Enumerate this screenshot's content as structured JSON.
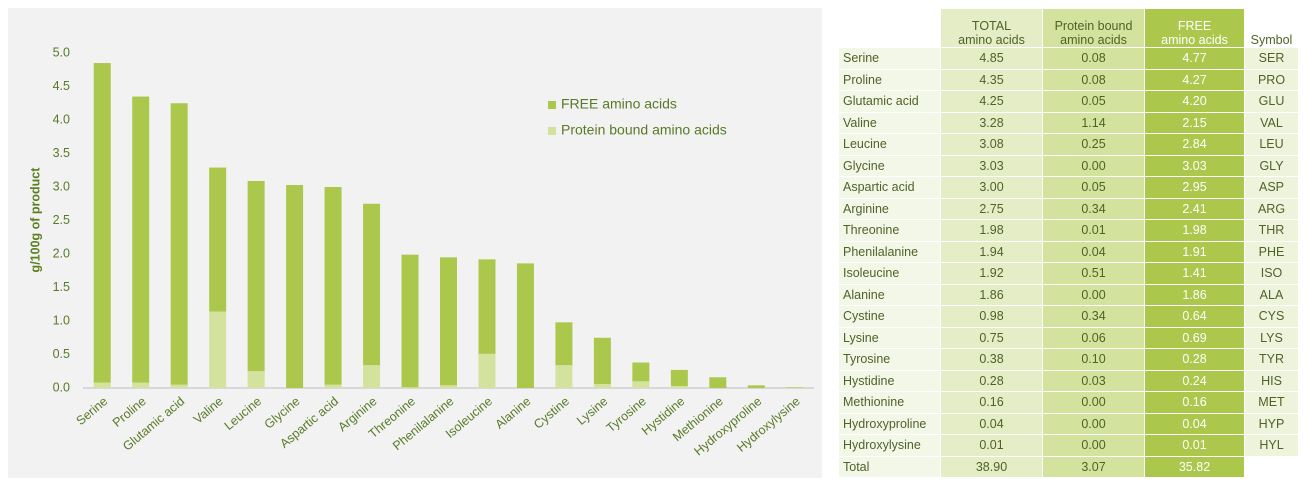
{
  "chart_data": {
    "type": "stacked_bar",
    "ylabel": "g/100g of product",
    "categories": [
      "Serine",
      "Proline",
      "Glutamic acid",
      "Valine",
      "Leucine",
      "Glycine",
      "Aspartic acid",
      "Arginine",
      "Threonine",
      "Phenilalanine",
      "Isoleucine",
      "Alanine",
      "Cystine",
      "Lysine",
      "Tyrosine",
      "Hystidine",
      "Methionine",
      "Hydroxyproline",
      "Hydroxylysine"
    ],
    "series": [
      {
        "name": "Protein bound amino acids",
        "color": "#d3e29d",
        "values": [
          0.08,
          0.08,
          0.05,
          1.14,
          0.25,
          0.0,
          0.05,
          0.34,
          0.01,
          0.04,
          0.51,
          0.0,
          0.34,
          0.06,
          0.1,
          0.03,
          0.0,
          0.0,
          0.0
        ]
      },
      {
        "name": "FREE amino acids",
        "color": "#abc84c",
        "values": [
          4.77,
          4.27,
          4.2,
          2.15,
          2.84,
          3.03,
          2.95,
          2.41,
          1.98,
          1.91,
          1.41,
          1.86,
          0.64,
          0.69,
          0.28,
          0.24,
          0.16,
          0.04,
          0.01
        ]
      }
    ],
    "ylim": [
      0,
      5
    ],
    "yticks": [
      {
        "value": 0,
        "label": "0.0"
      },
      {
        "value": 0.5,
        "label": "0.5"
      },
      {
        "value": 1,
        "label": "1.0"
      },
      {
        "value": 1.5,
        "label": "1.5"
      },
      {
        "value": 2,
        "label": "2.0"
      },
      {
        "value": 2.5,
        "label": "2.5"
      },
      {
        "value": 3,
        "label": "3.0"
      },
      {
        "value": 3.5,
        "label": "3.5"
      },
      {
        "value": 4,
        "label": "4.0"
      },
      {
        "value": 4.5,
        "label": "4.5"
      },
      {
        "value": 5,
        "label": "5.0"
      }
    ],
    "grid": false,
    "legend": "top-right"
  },
  "table": {
    "headers": [
      "TOTAL\namino acids",
      "Protein bound\namino acids",
      "FREE\namino acids",
      "Symbol"
    ],
    "rows": [
      [
        "Serine",
        "4.85",
        "0.08",
        "4.77",
        "SER"
      ],
      [
        "Proline",
        "4.35",
        "0.08",
        "4.27",
        "PRO"
      ],
      [
        "Glutamic acid",
        "4.25",
        "0.05",
        "4.20",
        "GLU"
      ],
      [
        "Valine",
        "3.28",
        "1.14",
        "2.15",
        "VAL"
      ],
      [
        "Leucine",
        "3.08",
        "0.25",
        "2.84",
        "LEU"
      ],
      [
        "Glycine",
        "3.03",
        "0.00",
        "3.03",
        "GLY"
      ],
      [
        "Aspartic acid",
        "3.00",
        "0.05",
        "2.95",
        "ASP"
      ],
      [
        "Arginine",
        "2.75",
        "0.34",
        "2.41",
        "ARG"
      ],
      [
        "Threonine",
        "1.98",
        "0.01",
        "1.98",
        "THR"
      ],
      [
        "Phenilalanine",
        "1.94",
        "0.04",
        "1.91",
        "PHE"
      ],
      [
        "Isoleucine",
        "1.92",
        "0.51",
        "1.41",
        "ISO"
      ],
      [
        "Alanine",
        "1.86",
        "0.00",
        "1.86",
        "ALA"
      ],
      [
        "Cystine",
        "0.98",
        "0.34",
        "0.64",
        "CYS"
      ],
      [
        "Lysine",
        "0.75",
        "0.06",
        "0.69",
        "LYS"
      ],
      [
        "Tyrosine",
        "0.38",
        "0.10",
        "0.28",
        "TYR"
      ],
      [
        "Hystidine",
        "0.28",
        "0.03",
        "0.24",
        "HIS"
      ],
      [
        "Methionine",
        "0.16",
        "0.00",
        "0.16",
        "MET"
      ],
      [
        "Hydroxyproline",
        "0.04",
        "0.00",
        "0.04",
        "HYP"
      ],
      [
        "Hydroxylysine",
        "0.01",
        "0.00",
        "0.01",
        "HYL"
      ],
      [
        "Total",
        "38.90",
        "3.07",
        "35.82"
      ]
    ]
  }
}
